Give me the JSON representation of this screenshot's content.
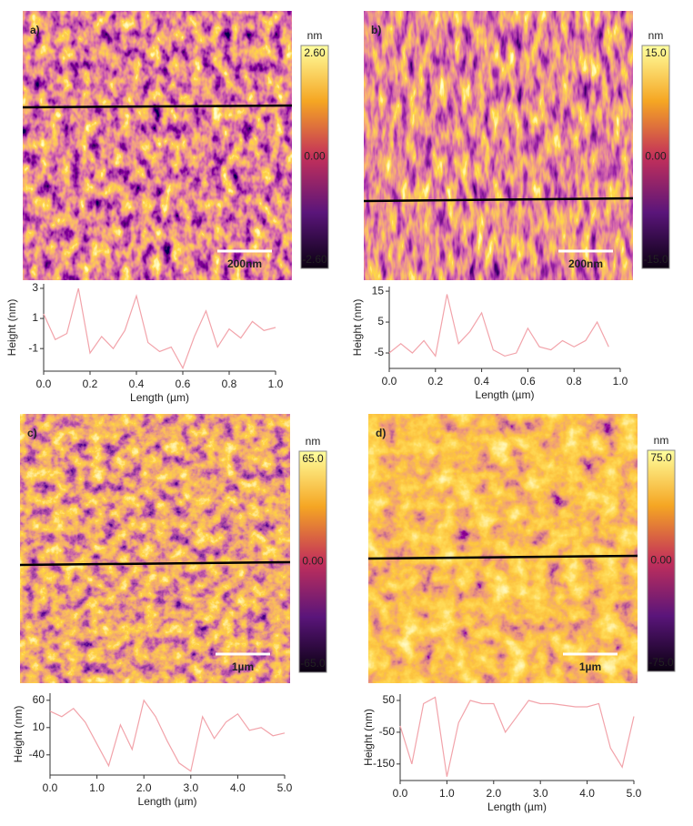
{
  "chart_data": [
    {
      "type": "line",
      "panel_label": "a)",
      "scale_bar": "200nm",
      "colorbar": {
        "unit": "nm",
        "clim": [
          -2.6,
          2.6
        ],
        "ticks": [
          {
            "value": 2.6,
            "label": "2.60"
          },
          {
            "value": 0,
            "label": "0.00"
          },
          {
            "value": -2.6,
            "label": "-2.60"
          }
        ]
      },
      "xlabel": "Length (µm)",
      "ylabel": "Height (nm)",
      "color": "#f2a3aa",
      "x": [
        0,
        0.05,
        0.1,
        0.15,
        0.2,
        0.25,
        0.3,
        0.35,
        0.4,
        0.45,
        0.5,
        0.55,
        0.6,
        0.65,
        0.7,
        0.75,
        0.8,
        0.85,
        0.9,
        0.95,
        1.0
      ],
      "values": [
        1.3,
        -0.4,
        0.0,
        3.0,
        -1.3,
        -0.2,
        -1.0,
        0.2,
        2.5,
        -0.6,
        -1.2,
        -0.9,
        -2.3,
        -0.2,
        1.5,
        -0.9,
        0.3,
        -0.3,
        0.8,
        0.2,
        0.4
      ],
      "xlim": [
        0,
        1.0
      ],
      "ylim": [
        -2.5,
        3.3
      ],
      "xticks": [
        {
          "value": 0,
          "label": "0.0"
        },
        {
          "value": 0.2,
          "label": "0.2"
        },
        {
          "value": 0.4,
          "label": "0.4"
        },
        {
          "value": 0.6,
          "label": "0.6"
        },
        {
          "value": 0.8,
          "label": "0.8"
        },
        {
          "value": 1.0,
          "label": "1.0"
        }
      ],
      "yticks": [
        3,
        1,
        -1
      ]
    },
    {
      "type": "line",
      "panel_label": "b)",
      "scale_bar": "200nm",
      "colorbar": {
        "unit": "nm",
        "clim": [
          -15,
          15
        ],
        "ticks": [
          {
            "value": 15,
            "label": "15.0"
          },
          {
            "value": 0,
            "label": "0.00"
          },
          {
            "value": -15,
            "label": "-15.0"
          }
        ]
      },
      "xlabel": "Length (µm)",
      "ylabel": "Height (nm)",
      "color": "#f2a3aa",
      "x": [
        0,
        0.05,
        0.1,
        0.15,
        0.2,
        0.25,
        0.3,
        0.35,
        0.4,
        0.45,
        0.5,
        0.55,
        0.6,
        0.65,
        0.7,
        0.75,
        0.8,
        0.85,
        0.9,
        0.95
      ],
      "values": [
        -5,
        -2,
        -5,
        -1,
        -6,
        14,
        -2,
        2,
        8,
        -4,
        -6,
        -5,
        3,
        -3,
        -4,
        -1,
        -3,
        -1,
        5,
        -3
      ],
      "xlim": [
        0,
        1.0
      ],
      "ylim": [
        -10,
        16.5
      ],
      "xticks": [
        {
          "value": 0,
          "label": "0.0"
        },
        {
          "value": 0.2,
          "label": "0.2"
        },
        {
          "value": 0.4,
          "label": "0.4"
        },
        {
          "value": 0.6,
          "label": "0.6"
        },
        {
          "value": 0.8,
          "label": "0.8"
        },
        {
          "value": 1.0,
          "label": "1.0"
        }
      ],
      "yticks": [
        15,
        5,
        -5
      ]
    },
    {
      "type": "line",
      "panel_label": "c)",
      "scale_bar": "1µm",
      "colorbar": {
        "unit": "nm",
        "clim": [
          -65,
          65
        ],
        "ticks": [
          {
            "value": 65,
            "label": "65.0"
          },
          {
            "value": 0,
            "label": "0.00"
          },
          {
            "value": -65,
            "label": "-65.0"
          }
        ]
      },
      "xlabel": "Length (µm)",
      "ylabel": "Height (nm)",
      "color": "#f2a3aa",
      "x": [
        0,
        0.25,
        0.5,
        0.75,
        1.0,
        1.25,
        1.5,
        1.75,
        2.0,
        2.25,
        2.5,
        2.75,
        3.0,
        3.25,
        3.5,
        3.75,
        4.0,
        4.25,
        4.5,
        4.75,
        5.0
      ],
      "values": [
        40,
        30,
        45,
        20,
        -20,
        -60,
        15,
        -30,
        60,
        30,
        -15,
        -55,
        -70,
        30,
        -10,
        20,
        35,
        5,
        10,
        -5,
        0
      ],
      "xlim": [
        0,
        5.0
      ],
      "ylim": [
        -77,
        73
      ],
      "xticks": [
        {
          "value": 0,
          "label": "0.0"
        },
        {
          "value": 1,
          "label": "1.0"
        },
        {
          "value": 2,
          "label": "2.0"
        },
        {
          "value": 3,
          "label": "3.0"
        },
        {
          "value": 4,
          "label": "4.0"
        },
        {
          "value": 5,
          "label": "5.0"
        }
      ],
      "yticks": [
        60,
        10,
        -40
      ]
    },
    {
      "type": "line",
      "panel_label": "d)",
      "scale_bar": "1µm",
      "colorbar": {
        "unit": "nm",
        "clim": [
          -75,
          75
        ],
        "ticks": [
          {
            "value": 75,
            "label": "75.0"
          },
          {
            "value": 0,
            "label": "0.00"
          },
          {
            "value": -75,
            "label": "-75.0"
          }
        ]
      },
      "xlabel": "Length (µm)",
      "ylabel": "Height (nm)",
      "color": "#f2a3aa",
      "x": [
        0,
        0.25,
        0.5,
        0.75,
        1.0,
        1.25,
        1.5,
        1.75,
        2.0,
        2.25,
        2.5,
        2.75,
        3.0,
        3.25,
        3.5,
        3.75,
        4.0,
        4.25,
        4.5,
        4.75,
        5.0
      ],
      "values": [
        -30,
        -150,
        40,
        60,
        -190,
        -20,
        50,
        40,
        40,
        -50,
        0,
        50,
        40,
        40,
        35,
        30,
        30,
        40,
        -100,
        -160,
        0
      ],
      "xlim": [
        0,
        5.0
      ],
      "ylim": [
        -202,
        70
      ],
      "xticks": [
        {
          "value": 0,
          "label": "0.0"
        },
        {
          "value": 1,
          "label": "1.0"
        },
        {
          "value": 2,
          "label": "2.0"
        },
        {
          "value": 3,
          "label": "3.0"
        },
        {
          "value": 4,
          "label": "4.0"
        },
        {
          "value": 5,
          "label": "5.0"
        }
      ],
      "yticks": [
        50,
        -50,
        -150
      ]
    }
  ]
}
